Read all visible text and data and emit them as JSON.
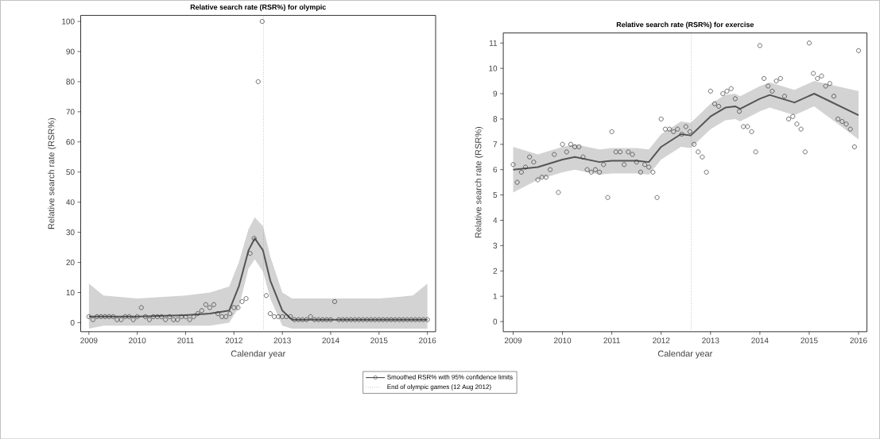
{
  "chart_data": [
    {
      "type": "scatter",
      "title": "Relative search rate (RSR%) for olympic",
      "xlabel": "Calendar year",
      "ylabel": "Relative search rate (RSR%)",
      "xlim": [
        2008.83,
        2016.17
      ],
      "ylim": [
        -3,
        102
      ],
      "xticks": [
        2009,
        2010,
        2011,
        2012,
        2013,
        2014,
        2015,
        2016
      ],
      "yticks": [
        0,
        10,
        20,
        30,
        40,
        50,
        60,
        70,
        80,
        90,
        100
      ],
      "legend": "bottom",
      "series": [
        {
          "marker": "circle",
          "color": "#333333",
          "x": [
            2009,
            2009.083,
            2009.167,
            2009.25,
            2009.333,
            2009.417,
            2009.5,
            2009.583,
            2009.667,
            2009.75,
            2009.833,
            2009.917,
            2010,
            2010.083,
            2010.167,
            2010.25,
            2010.333,
            2010.417,
            2010.5,
            2010.583,
            2010.667,
            2010.75,
            2010.833,
            2010.917,
            2011,
            2011.083,
            2011.167,
            2011.25,
            2011.333,
            2011.417,
            2011.5,
            2011.583,
            2011.667,
            2011.75,
            2011.833,
            2011.917,
            2012,
            2012.083,
            2012.167,
            2012.25,
            2012.333,
            2012.417,
            2012.5,
            2012.583,
            2012.667,
            2012.75,
            2012.833,
            2012.917,
            2013,
            2013.083,
            2013.167,
            2013.25,
            2013.333,
            2013.417,
            2013.5,
            2013.583,
            2013.667,
            2013.75,
            2013.833,
            2013.917,
            2014,
            2014.083,
            2014.167,
            2014.25,
            2014.333,
            2014.417,
            2014.5,
            2014.583,
            2014.667,
            2014.75,
            2014.833,
            2014.917,
            2015,
            2015.083,
            2015.167,
            2015.25,
            2015.333,
            2015.417,
            2015.5,
            2015.583,
            2015.667,
            2015.75,
            2015.833,
            2015.917,
            2016
          ],
          "values": [
            2,
            1,
            2,
            2,
            2,
            2,
            2,
            1,
            1,
            2,
            2,
            1,
            2,
            5,
            2,
            1,
            2,
            2,
            2,
            1,
            2,
            1,
            1,
            2,
            2,
            1,
            2,
            3,
            4,
            6,
            5,
            6,
            3,
            2,
            2,
            3,
            5,
            5,
            7,
            8,
            23,
            28,
            80,
            100,
            9,
            3,
            2,
            2,
            2,
            2,
            2,
            1,
            1,
            1,
            1,
            2,
            1,
            1,
            1,
            1,
            1,
            7,
            1,
            1,
            1,
            1,
            1,
            1,
            1,
            1,
            1,
            1,
            1,
            1,
            1,
            1,
            1,
            1,
            1,
            1,
            1,
            1,
            1,
            1,
            1
          ]
        },
        {
          "type": "line",
          "name": "Smoothed RSR% with 95% confidence limits",
          "color": "#555555",
          "x": [
            2009,
            2009.3,
            2010,
            2011,
            2011.5,
            2011.9,
            2012.1,
            2012.3,
            2012.43,
            2012.6,
            2012.75,
            2013,
            2013.2,
            2014,
            2015,
            2015.7,
            2016
          ],
          "values": [
            2,
            2,
            2,
            2.5,
            3,
            4,
            12,
            24,
            28,
            24,
            14,
            4,
            1,
            1,
            1,
            1,
            1
          ],
          "lower": [
            -2,
            -1,
            -1,
            -1,
            -1,
            0,
            5,
            18,
            21,
            17,
            8,
            -1,
            -2,
            -2,
            -2,
            -2,
            -2
          ],
          "upper": [
            13,
            9,
            8,
            9,
            10,
            12,
            20,
            31,
            35,
            32,
            22,
            10,
            8,
            8,
            8,
            9,
            13
          ]
        }
      ],
      "ref_lines": [
        {
          "axis": "x",
          "value": 2012.61,
          "label": "End of olympic games (12 Aug 2012)",
          "line_style": "dotted",
          "color": "#888888"
        }
      ]
    },
    {
      "type": "scatter",
      "title": "Relative search rate (RSR%) for exercise",
      "xlabel": "Calendar year",
      "ylabel": "Relative search rate (RSR%)",
      "xlim": [
        2008.8,
        2016.17
      ],
      "ylim": [
        -0.4,
        11.4
      ],
      "xticks": [
        2009,
        2010,
        2011,
        2012,
        2013,
        2014,
        2015,
        2016
      ],
      "yticks": [
        0,
        1,
        2,
        3,
        4,
        5,
        6,
        7,
        8,
        9,
        10,
        11
      ],
      "series": [
        {
          "marker": "circle",
          "color": "#333333",
          "x": [
            2009,
            2009.083,
            2009.167,
            2009.25,
            2009.333,
            2009.417,
            2009.5,
            2009.583,
            2009.667,
            2009.75,
            2009.833,
            2009.917,
            2010,
            2010.083,
            2010.167,
            2010.25,
            2010.333,
            2010.417,
            2010.5,
            2010.583,
            2010.667,
            2010.75,
            2010.833,
            2010.917,
            2011,
            2011.083,
            2011.167,
            2011.25,
            2011.333,
            2011.417,
            2011.5,
            2011.583,
            2011.667,
            2011.75,
            2011.833,
            2011.917,
            2012,
            2012.083,
            2012.167,
            2012.25,
            2012.333,
            2012.417,
            2012.5,
            2012.583,
            2012.667,
            2012.75,
            2012.833,
            2012.917,
            2013,
            2013.083,
            2013.167,
            2013.25,
            2013.333,
            2013.417,
            2013.5,
            2013.583,
            2013.667,
            2013.75,
            2013.833,
            2013.917,
            2014,
            2014.083,
            2014.167,
            2014.25,
            2014.333,
            2014.417,
            2014.5,
            2014.583,
            2014.667,
            2014.75,
            2014.833,
            2014.917,
            2015,
            2015.083,
            2015.167,
            2015.25,
            2015.333,
            2015.417,
            2015.5,
            2015.583,
            2015.667,
            2015.75,
            2015.833,
            2015.917,
            2016
          ],
          "values": [
            6.2,
            5.5,
            5.9,
            6.1,
            6.5,
            6.3,
            5.6,
            5.7,
            5.7,
            6.0,
            6.6,
            5.1,
            7.0,
            6.7,
            7.0,
            6.9,
            6.9,
            6.5,
            6.0,
            5.9,
            6.0,
            5.9,
            6.2,
            4.9,
            7.5,
            6.7,
            6.7,
            6.2,
            6.7,
            6.6,
            6.3,
            5.9,
            6.2,
            6.1,
            5.9,
            4.9,
            8.0,
            7.6,
            7.6,
            7.5,
            7.6,
            7.4,
            7.7,
            7.5,
            7.0,
            6.7,
            6.5,
            5.9,
            9.1,
            8.6,
            8.5,
            9.0,
            9.1,
            9.2,
            8.8,
            8.3,
            7.7,
            7.7,
            7.5,
            6.7,
            10.9,
            9.6,
            9.3,
            9.1,
            9.5,
            9.6,
            8.9,
            8.0,
            8.1,
            7.8,
            7.6,
            6.7,
            11.0,
            9.8,
            9.6,
            9.7,
            9.3,
            9.4,
            8.9,
            8.0,
            7.9,
            7.8,
            7.6,
            6.9,
            10.7
          ]
        },
        {
          "type": "line",
          "color": "#555555",
          "x": [
            2009,
            2009.5,
            2010,
            2010.25,
            2010.75,
            2011,
            2011.5,
            2011.75,
            2012,
            2012.4,
            2012.6,
            2013,
            2013.3,
            2013.5,
            2013.6,
            2014,
            2014.2,
            2014.7,
            2015.1,
            2016
          ],
          "values": [
            6.0,
            6.1,
            6.4,
            6.5,
            6.3,
            6.35,
            6.35,
            6.3,
            6.9,
            7.4,
            7.35,
            8.1,
            8.45,
            8.5,
            8.4,
            8.8,
            8.95,
            8.65,
            9.0,
            8.15
          ],
          "lower": [
            5.1,
            5.6,
            5.9,
            6.0,
            5.8,
            5.85,
            5.85,
            5.8,
            6.4,
            6.9,
            6.85,
            7.6,
            7.95,
            8.0,
            7.9,
            8.3,
            8.45,
            8.15,
            8.5,
            7.2
          ],
          "upper": [
            6.9,
            6.6,
            6.9,
            7.0,
            6.8,
            6.85,
            6.85,
            6.8,
            7.4,
            7.9,
            7.85,
            8.6,
            8.95,
            9.0,
            8.9,
            9.3,
            9.45,
            9.15,
            9.5,
            9.1
          ]
        }
      ],
      "ref_lines": [
        {
          "axis": "x",
          "value": 2012.61,
          "line_style": "dotted",
          "color": "#888888"
        }
      ]
    }
  ]
}
